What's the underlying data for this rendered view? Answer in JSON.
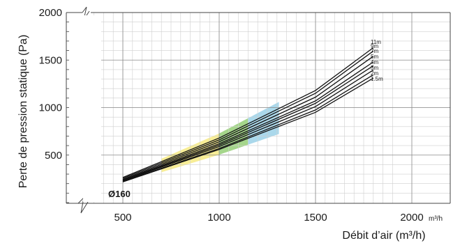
{
  "chart_data": {
    "type": "line",
    "title": "",
    "xlabel": "Débit d’air (m³/h)",
    "ylabel": "Perte de pression statique (Pa)",
    "x_unit_suffix": "m³/h",
    "xlim": [
      300,
      1900
    ],
    "ylim": [
      0,
      2000
    ],
    "x_ticks": [
      500,
      1000,
      1500,
      2000
    ],
    "y_ticks": [
      500,
      1000,
      1500,
      2000
    ],
    "x_tick_labels": [
      "500",
      "1000",
      "1500",
      "2000"
    ],
    "y_tick_labels": [
      "500",
      "1000",
      "1500",
      "2000"
    ],
    "grid": true,
    "axis_break": true,
    "annotation": "Ø160",
    "series": [
      {
        "name": "11m",
        "x": [
          500,
          1000,
          1500,
          1800
        ],
        "y": [
          265,
          680,
          1180,
          1630
        ]
      },
      {
        "name": "9m",
        "x": [
          500,
          1000,
          1500,
          1800
        ],
        "y": [
          255,
          660,
          1150,
          1595
        ]
      },
      {
        "name": "7m",
        "x": [
          500,
          1000,
          1500,
          1800
        ],
        "y": [
          245,
          640,
          1110,
          1540
        ]
      },
      {
        "name": "5m",
        "x": [
          500,
          1000,
          1500,
          1800
        ],
        "y": [
          237,
          620,
          1070,
          1480
        ]
      },
      {
        "name": "4m",
        "x": [
          500,
          1000,
          1500,
          1800
        ],
        "y": [
          232,
          605,
          1045,
          1440
        ]
      },
      {
        "name": "3m",
        "x": [
          500,
          1000,
          1500,
          1800
        ],
        "y": [
          228,
          590,
          1010,
          1395
        ]
      },
      {
        "name": "2m",
        "x": [
          500,
          1000,
          1500,
          1800
        ],
        "y": [
          222,
          570,
          975,
          1345
        ]
      },
      {
        "name": "1.5m",
        "x": [
          500,
          1000,
          1500,
          1800
        ],
        "y": [
          218,
          560,
          950,
          1310
        ]
      }
    ],
    "zones": [
      {
        "color": "#f3e56a",
        "x_range": [
          700,
          1000
        ]
      },
      {
        "color": "#7fc45a",
        "x_range": [
          1000,
          1150
        ]
      },
      {
        "color": "#86c7e2",
        "x_range": [
          1150,
          1310
        ]
      }
    ]
  }
}
